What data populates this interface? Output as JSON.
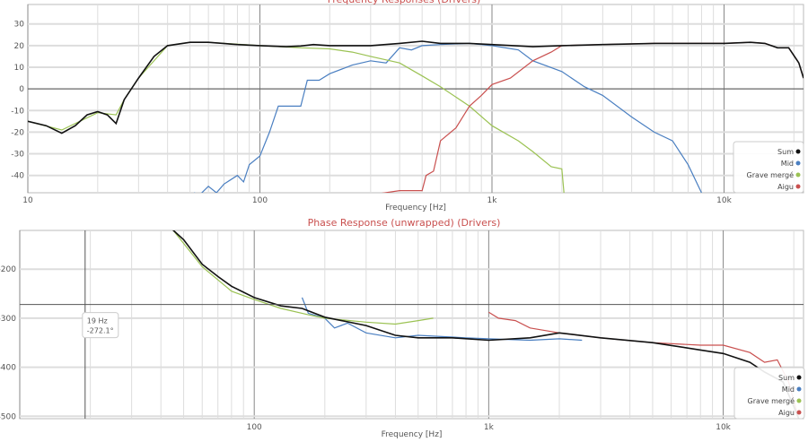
{
  "colors": {
    "sum": "#111111",
    "mid": "#4a7fc1",
    "grave": "#9bc253",
    "aigu": "#c9504f",
    "title": "#c9504f"
  },
  "chart_data": [
    {
      "type": "line",
      "title": "Frequency Responses (Drivers)",
      "xlabel": "Frequency [Hz]",
      "ylabel": "",
      "xscale": "log",
      "xlim": [
        10,
        22000
      ],
      "ylim": [
        -48,
        39
      ],
      "xticks": [
        {
          "v": 10,
          "l": "10"
        },
        {
          "v": 100,
          "l": "100"
        },
        {
          "v": 1000,
          "l": "1k"
        },
        {
          "v": 10000,
          "l": "10k"
        }
      ],
      "yticks": [
        30,
        20,
        10,
        0,
        -10,
        -20,
        -30,
        -40
      ],
      "grid": true,
      "legend": "bottom-right",
      "series": [
        {
          "name": "Sum",
          "color": "#111111",
          "points": [
            [
              10,
              -15
            ],
            [
              12,
              -17
            ],
            [
              14,
              -20.5
            ],
            [
              16,
              -17
            ],
            [
              18,
              -12
            ],
            [
              20,
              -10.5
            ],
            [
              22,
              -12
            ],
            [
              24,
              -16
            ],
            [
              26,
              -5
            ],
            [
              30,
              5
            ],
            [
              35,
              15
            ],
            [
              40,
              20
            ],
            [
              50,
              21.5
            ],
            [
              60,
              21.5
            ],
            [
              80,
              20.5
            ],
            [
              100,
              20
            ],
            [
              130,
              19.5
            ],
            [
              150,
              19.8
            ],
            [
              170,
              20.5
            ],
            [
              200,
              20
            ],
            [
              300,
              20
            ],
            [
              400,
              21
            ],
            [
              500,
              22
            ],
            [
              600,
              21
            ],
            [
              800,
              21
            ],
            [
              1000,
              20.5
            ],
            [
              1500,
              19.5
            ],
            [
              2000,
              20
            ],
            [
              3000,
              20.5
            ],
            [
              5000,
              21
            ],
            [
              8000,
              21
            ],
            [
              10000,
              21
            ],
            [
              13000,
              21.5
            ],
            [
              15000,
              21
            ],
            [
              17000,
              19
            ],
            [
              19000,
              19
            ],
            [
              21000,
              12
            ],
            [
              22000,
              5
            ]
          ]
        },
        {
          "name": "Mid",
          "color": "#4a7fc1",
          "points": [
            [
              52,
              -48
            ],
            [
              55,
              -49
            ],
            [
              60,
              -45
            ],
            [
              65,
              -48
            ],
            [
              70,
              -44
            ],
            [
              80,
              -40
            ],
            [
              85,
              -43
            ],
            [
              90,
              -35
            ],
            [
              100,
              -31
            ],
            [
              110,
              -20
            ],
            [
              120,
              -8
            ],
            [
              135,
              -8
            ],
            [
              150,
              -8
            ],
            [
              160,
              4
            ],
            [
              180,
              4
            ],
            [
              200,
              7
            ],
            [
              250,
              11
            ],
            [
              300,
              13
            ],
            [
              350,
              12
            ],
            [
              400,
              19
            ],
            [
              450,
              18
            ],
            [
              500,
              20
            ],
            [
              600,
              20.5
            ],
            [
              800,
              21
            ],
            [
              1000,
              20
            ],
            [
              1300,
              18
            ],
            [
              1500,
              13
            ],
            [
              2000,
              8
            ],
            [
              2500,
              1
            ],
            [
              3000,
              -3
            ],
            [
              4000,
              -13
            ],
            [
              5000,
              -20
            ],
            [
              6000,
              -24
            ],
            [
              7000,
              -35
            ],
            [
              8000,
              -48
            ]
          ]
        },
        {
          "name": "Grave mergé",
          "color": "#9bc253",
          "points": [
            [
              10,
              -15
            ],
            [
              14,
              -19
            ],
            [
              20,
              -11
            ],
            [
              24,
              -12
            ],
            [
              26,
              -5
            ],
            [
              30,
              5
            ],
            [
              40,
              20
            ],
            [
              50,
              21.5
            ],
            [
              60,
              21.5
            ],
            [
              100,
              20
            ],
            [
              150,
              19
            ],
            [
              200,
              18.5
            ],
            [
              250,
              17
            ],
            [
              300,
              15
            ],
            [
              400,
              12
            ],
            [
              500,
              6
            ],
            [
              600,
              1
            ],
            [
              800,
              -8
            ],
            [
              1000,
              -17
            ],
            [
              1300,
              -24
            ],
            [
              1500,
              -29
            ],
            [
              1800,
              -36
            ],
            [
              2000,
              -37
            ],
            [
              2050,
              -50
            ]
          ]
        },
        {
          "name": "Aigu",
          "color": "#c9504f",
          "points": [
            [
              250,
              -49
            ],
            [
              300,
              -49
            ],
            [
              400,
              -47
            ],
            [
              500,
              -47
            ],
            [
              520,
              -40
            ],
            [
              560,
              -38
            ],
            [
              600,
              -24
            ],
            [
              700,
              -18
            ],
            [
              800,
              -8
            ],
            [
              900,
              -3
            ],
            [
              1000,
              2
            ],
            [
              1200,
              5
            ],
            [
              1500,
              13
            ],
            [
              1800,
              17
            ],
            [
              2000,
              20
            ],
            [
              3000,
              20.5
            ],
            [
              5000,
              21
            ],
            [
              8000,
              21
            ],
            [
              10000,
              21
            ],
            [
              13000,
              21.5
            ],
            [
              15000,
              21
            ],
            [
              17000,
              19
            ],
            [
              19000,
              19
            ],
            [
              21000,
              12
            ],
            [
              22000,
              5
            ]
          ]
        }
      ]
    },
    {
      "type": "line",
      "title": "Phase Response (unwrapped) (Drivers)",
      "xlabel": "Frequency [Hz]",
      "ylabel": "",
      "xscale": "log",
      "xlim": [
        10,
        22000
      ],
      "ylim": [
        -505,
        -121
      ],
      "xticks": [
        {
          "v": 100,
          "l": "100"
        },
        {
          "v": 1000,
          "l": "1k"
        },
        {
          "v": 10000,
          "l": "10k"
        }
      ],
      "yticks": [
        -200,
        -300,
        -400,
        -500
      ],
      "grid": true,
      "legend": "bottom-right",
      "cursor": {
        "freq": 19,
        "value": -272.1,
        "label_freq": "19 Hz",
        "label_value": "-272.1°"
      },
      "series": [
        {
          "name": "Sum",
          "color": "#111111",
          "points": [
            [
              45,
              -120
            ],
            [
              50,
              -140
            ],
            [
              60,
              -190
            ],
            [
              70,
              -215
            ],
            [
              80,
              -235
            ],
            [
              100,
              -258
            ],
            [
              130,
              -275
            ],
            [
              160,
              -280
            ],
            [
              200,
              -298
            ],
            [
              300,
              -315
            ],
            [
              400,
              -335
            ],
            [
              500,
              -340
            ],
            [
              700,
              -340
            ],
            [
              1000,
              -345
            ],
            [
              1500,
              -340
            ],
            [
              2000,
              -330
            ],
            [
              3000,
              -340
            ],
            [
              5000,
              -350
            ],
            [
              8000,
              -365
            ],
            [
              10000,
              -372
            ],
            [
              13000,
              -390
            ],
            [
              15000,
              -410
            ],
            [
              18000,
              -430
            ],
            [
              20000,
              -480
            ],
            [
              21000,
              -505
            ]
          ]
        },
        {
          "name": "Mid",
          "color": "#4a7fc1",
          "points": [
            [
              160,
              -258
            ],
            [
              170,
              -290
            ],
            [
              200,
              -300
            ],
            [
              220,
              -320
            ],
            [
              250,
              -310
            ],
            [
              300,
              -330
            ],
            [
              400,
              -340
            ],
            [
              500,
              -335
            ],
            [
              800,
              -340
            ],
            [
              1000,
              -342
            ],
            [
              1500,
              -345
            ],
            [
              2000,
              -342
            ],
            [
              2500,
              -345
            ]
          ]
        },
        {
          "name": "Grave mergé",
          "color": "#9bc253",
          "points": [
            [
              45,
              -120
            ],
            [
              60,
              -195
            ],
            [
              80,
              -245
            ],
            [
              100,
              -262
            ],
            [
              130,
              -280
            ],
            [
              170,
              -293
            ],
            [
              200,
              -300
            ],
            [
              300,
              -308
            ],
            [
              400,
              -312
            ],
            [
              500,
              -305
            ],
            [
              580,
              -300
            ]
          ]
        },
        {
          "name": "Aigu",
          "color": "#c9504f",
          "points": [
            [
              1000,
              -288
            ],
            [
              1100,
              -300
            ],
            [
              1300,
              -305
            ],
            [
              1500,
              -320
            ],
            [
              2000,
              -330
            ],
            [
              3000,
              -340
            ],
            [
              5000,
              -350
            ],
            [
              8000,
              -355
            ],
            [
              10000,
              -355
            ],
            [
              13000,
              -370
            ],
            [
              15000,
              -390
            ],
            [
              17000,
              -385
            ],
            [
              19000,
              -430
            ],
            [
              21000,
              -505
            ]
          ]
        }
      ]
    }
  ]
}
